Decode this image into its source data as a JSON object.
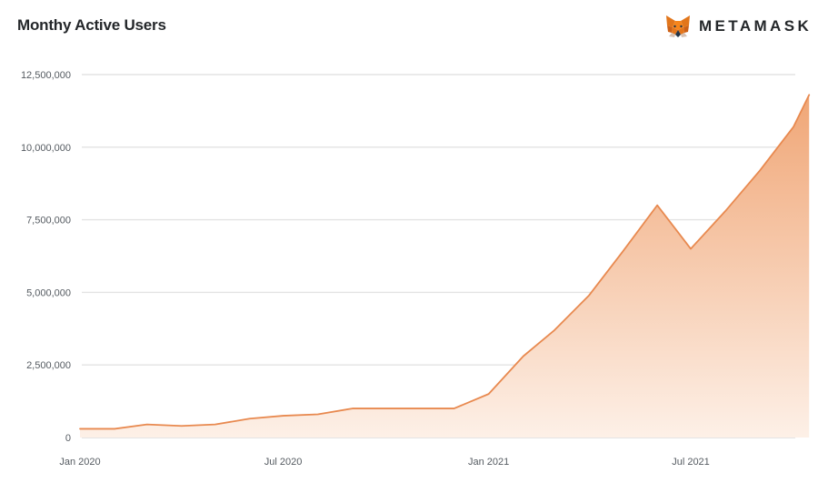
{
  "header": {
    "title": "Monthy Active Users",
    "brand_name": "METAMASK",
    "brand_logo_icon": "metamask-fox-icon"
  },
  "colors": {
    "line": "#e8894f",
    "fill_top": "#f0a676",
    "fill_bottom": "#fdf0e7",
    "grid": "#e3e3e3",
    "axis": "#dcdcdc",
    "text": "#24272a",
    "tick_text": "#555b61"
  },
  "chart_data": {
    "type": "area",
    "title": "Monthy Active Users",
    "xlabel": "",
    "ylabel": "",
    "grid": true,
    "legend": "none",
    "x_ticks": [
      {
        "date": "2020-01-01",
        "label": "Jan 2020"
      },
      {
        "date": "2020-07-01",
        "label": "Jul 2020"
      },
      {
        "date": "2021-01-01",
        "label": "Jan 2021"
      },
      {
        "date": "2021-07-01",
        "label": "Jul 2021"
      }
    ],
    "y_ticks": [
      {
        "value": 0,
        "label": "0"
      },
      {
        "value": 2500000,
        "label": "2,500,000"
      },
      {
        "value": 5000000,
        "label": "5,000,000"
      },
      {
        "value": 7500000,
        "label": "7,500,000"
      },
      {
        "value": 10000000,
        "label": "10,000,000"
      },
      {
        "value": 12500000,
        "label": "12,500,000"
      }
    ],
    "xlim": [
      "2020-01-01",
      "2021-10-01"
    ],
    "ylim": [
      0,
      12500000
    ],
    "series": [
      {
        "x": [
          "2020-01-01",
          "2020-02-01",
          "2020-03-01",
          "2020-04-01",
          "2020-05-01",
          "2020-06-01",
          "2020-07-01",
          "2020-08-01",
          "2020-09-01",
          "2020-10-01",
          "2020-11-01",
          "2020-12-01",
          "2021-01-01",
          "2021-02-01",
          "2021-03-01",
          "2021-04-01",
          "2021-05-01",
          "2021-06-01",
          "2021-07-01",
          "2021-08-01",
          "2021-09-01",
          "2021-10-01"
        ],
        "y": [
          300000,
          300000,
          450000,
          400000,
          450000,
          650000,
          750000,
          800000,
          1000000,
          1000000,
          1000000,
          1000000,
          1500000,
          2800000,
          3700000,
          4900000,
          6400000,
          8000000,
          6500000,
          7800000,
          9200000,
          10700000
        ]
      }
    ],
    "series_extension": {
      "x": [
        "2021-10-15"
      ],
      "y": [
        11800000
      ]
    }
  }
}
